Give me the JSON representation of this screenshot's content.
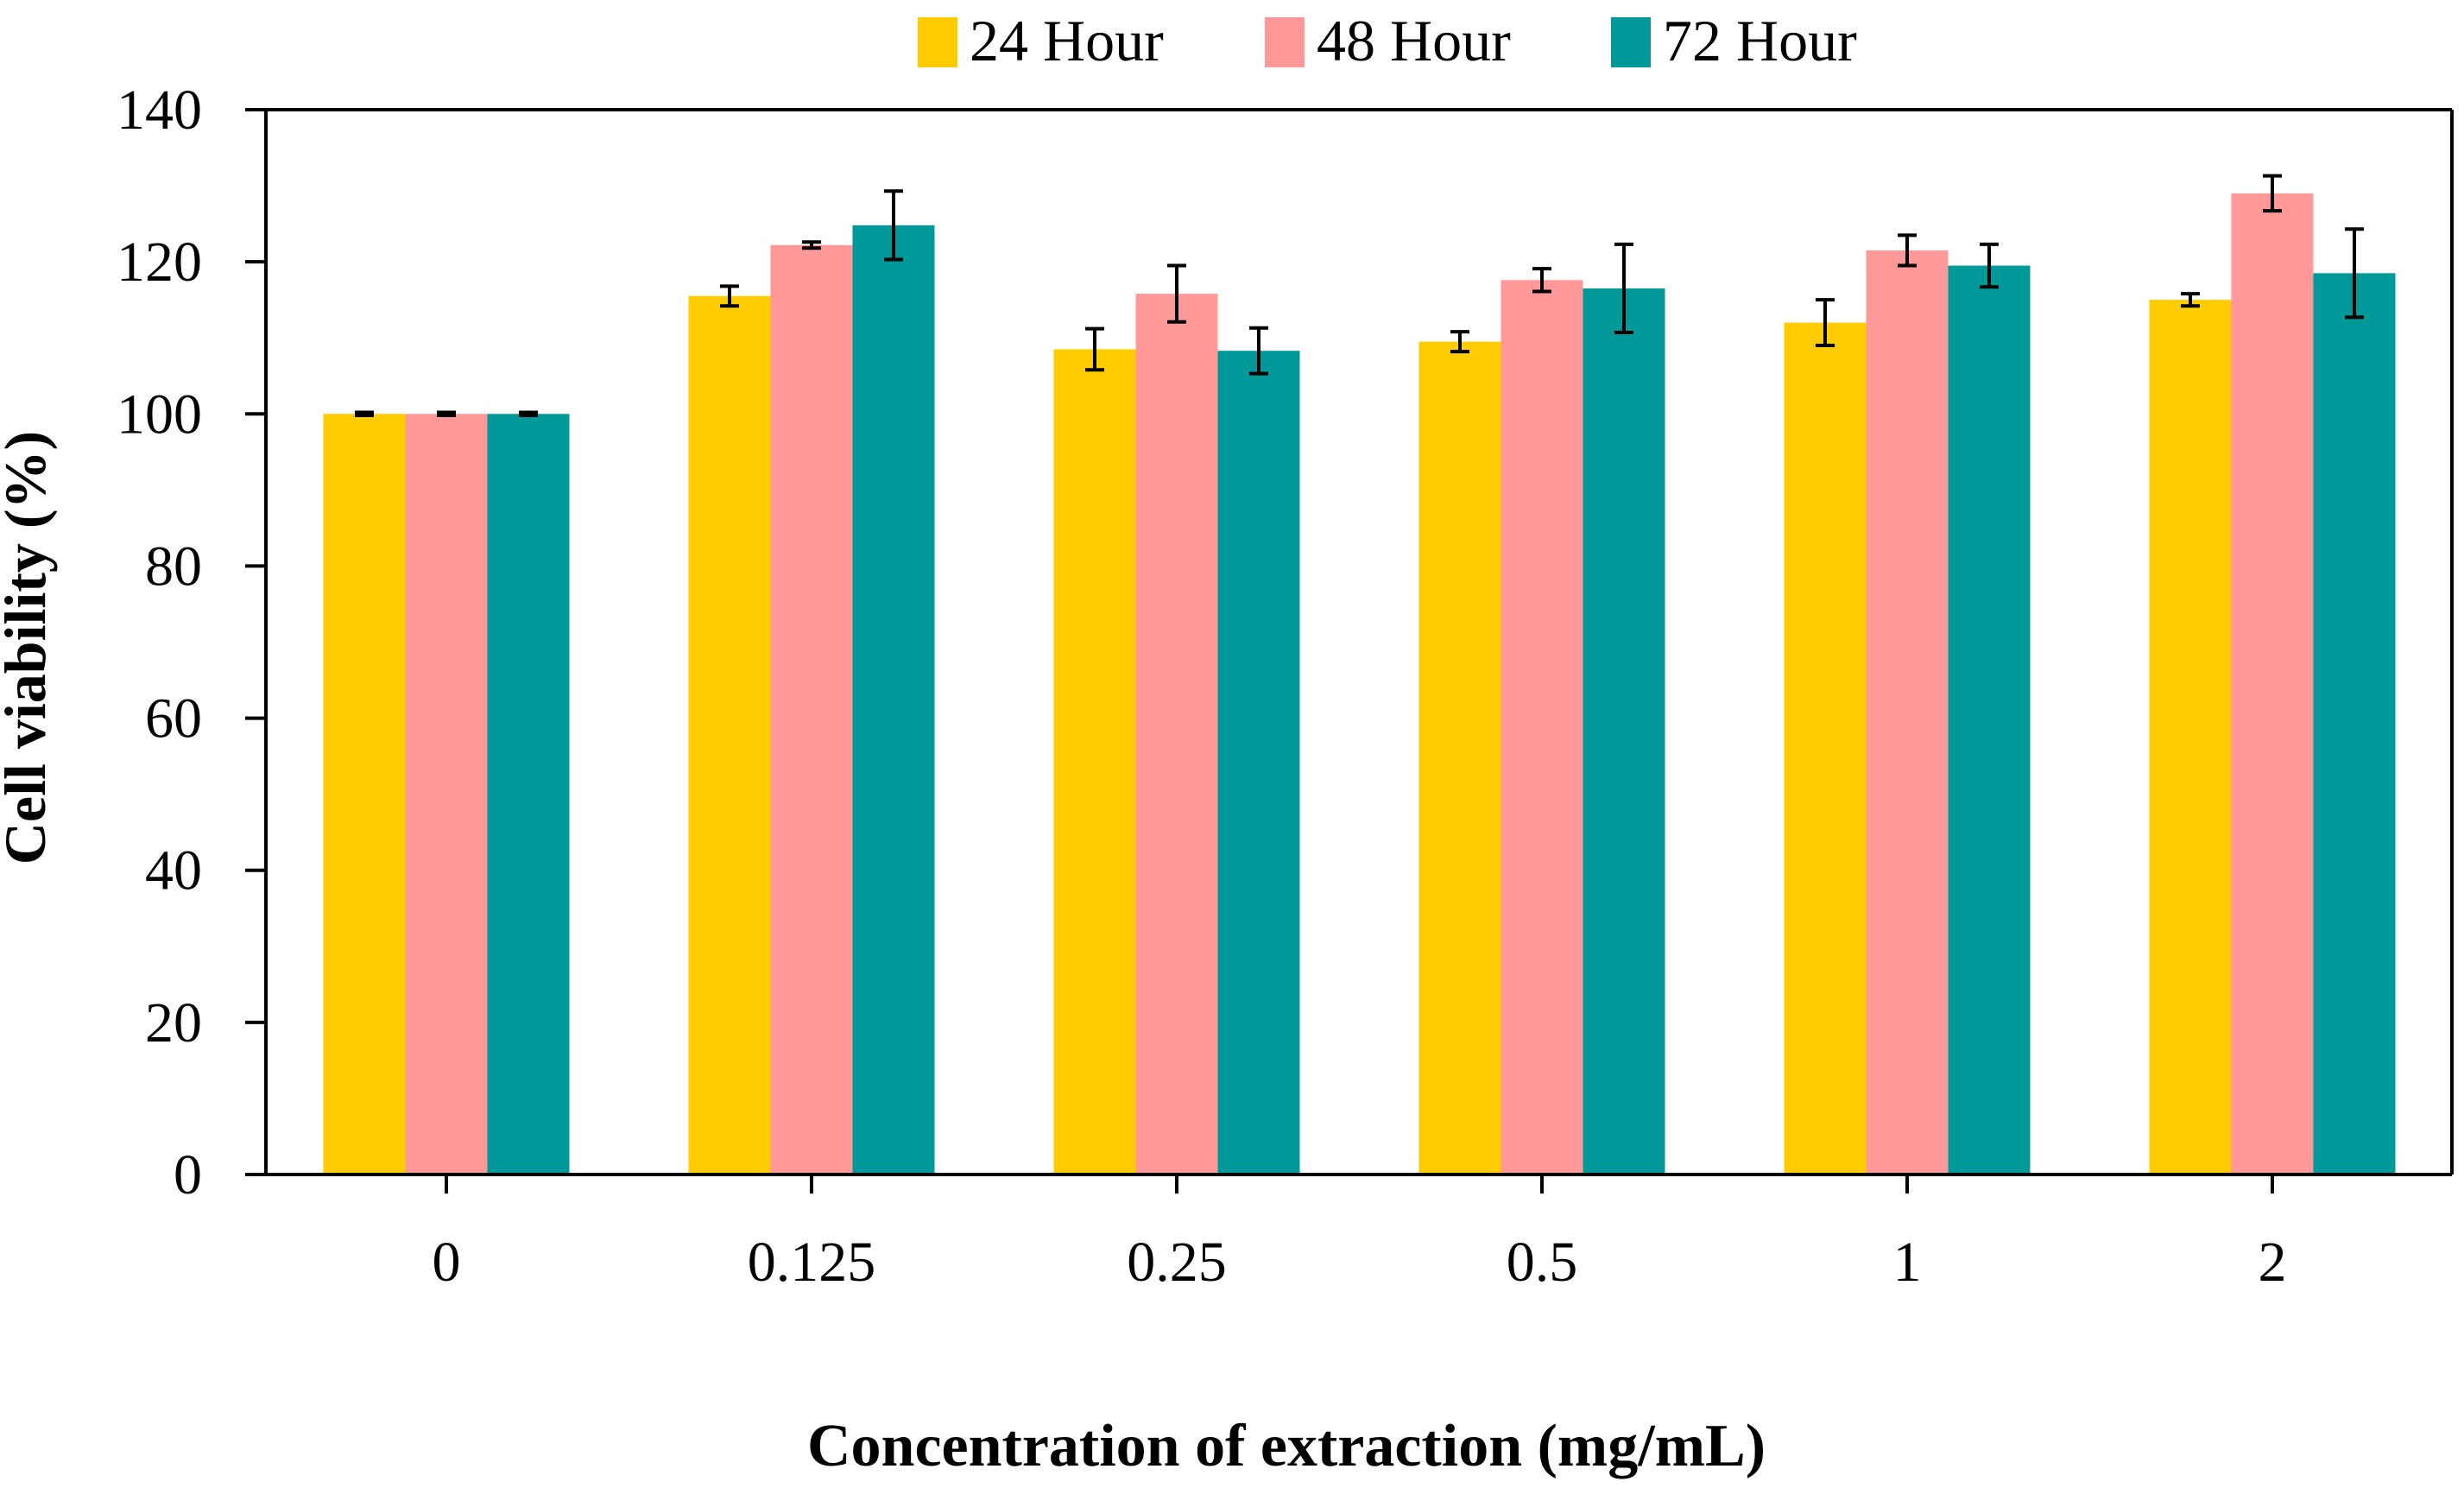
{
  "chart_data": {
    "type": "bar",
    "title": "",
    "xlabel": "Concentration of extraction (mg/mL)",
    "ylabel": "Cell viability (%)",
    "ylim": [
      0,
      140
    ],
    "yticks": [
      0,
      20,
      40,
      60,
      80,
      100,
      120,
      140
    ],
    "categories": [
      "0",
      "0.125",
      "0.25",
      "0.5",
      "1",
      "2"
    ],
    "legend_position": "top-center",
    "grid": false,
    "series": [
      {
        "name": "24 Hour",
        "color": "#FFCC00",
        "values": [
          100,
          115.5,
          108.5,
          109.5,
          112,
          115
        ],
        "errors": [
          0.2,
          1.3,
          2.7,
          1.3,
          3.0,
          0.8
        ]
      },
      {
        "name": "48 Hour",
        "color": "#FF9999",
        "values": [
          100,
          122.2,
          115.8,
          117.6,
          121.5,
          129
        ],
        "errors": [
          0.2,
          0.4,
          3.7,
          1.5,
          2.0,
          2.3
        ]
      },
      {
        "name": "72 Hour",
        "color": "#009999",
        "values": [
          100,
          124.8,
          108.3,
          116.5,
          119.5,
          118.5
        ],
        "errors": [
          0.2,
          4.5,
          3.0,
          5.8,
          2.8,
          5.8
        ]
      }
    ]
  }
}
